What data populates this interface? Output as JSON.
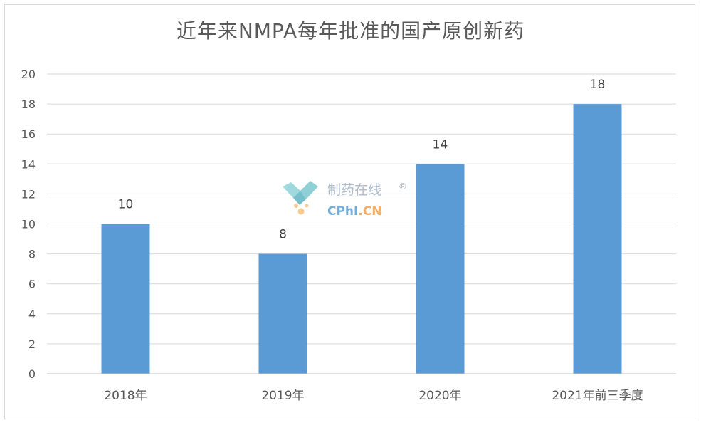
{
  "chart_data": {
    "type": "bar",
    "title": "近年来NMPA每年批准的国产原创新药",
    "categories": [
      "2018年",
      "2019年",
      "2020年",
      "2021年前三季度"
    ],
    "values": [
      10,
      8,
      14,
      18
    ],
    "ylim": [
      0,
      20
    ],
    "yticks": [
      0,
      2,
      4,
      6,
      8,
      10,
      12,
      14,
      16,
      18,
      20
    ],
    "grid": true,
    "legend": "none",
    "bar_color": "#5b9bd5",
    "data_labels": true
  },
  "watermark": {
    "name": "制药在线",
    "registered": "®",
    "site_cphi": "CPhI",
    "site_cn": ".CN",
    "color_text": "#9fb0c4",
    "color_cphi": "#5aa0d6",
    "color_cn": "#f0a050"
  }
}
